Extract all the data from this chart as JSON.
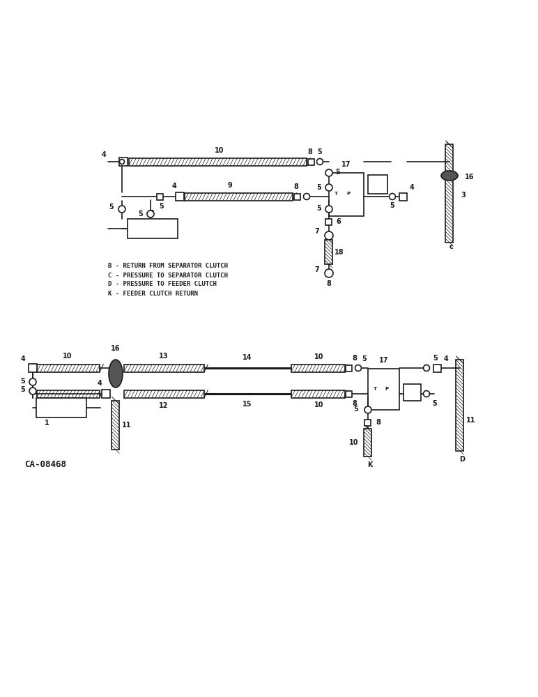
{
  "bg_color": "#ffffff",
  "line_color": "#1a1a1a",
  "legend_lines": [
    "B - RETURN FROM SEPARATOR CLUTCH",
    "C - PRESSURE TO SEPARATOR CLUTCH",
    "D - PRESSURE TO FEEDER CLUTCH",
    "K - FEEDER CLUTCH RETURN"
  ],
  "part_label": "CA-08468"
}
